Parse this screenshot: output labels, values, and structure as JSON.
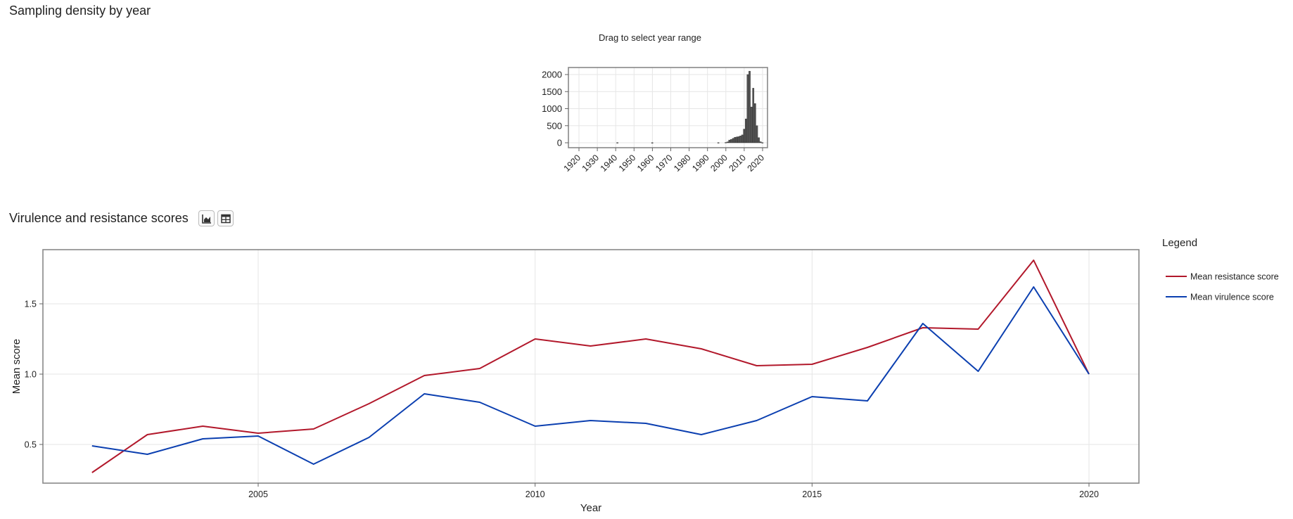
{
  "sections": {
    "density_title": "Sampling density by year",
    "scores_title": "Virulence and resistance scores"
  },
  "toolbar": {
    "chart_icon": "area-chart-icon",
    "table_icon": "table-icon"
  },
  "chart_data": [
    {
      "type": "bar",
      "title": "Drag to select year range",
      "xlabel": "",
      "ylabel": "",
      "xlim": [
        1915,
        2023
      ],
      "ylim": [
        0,
        2200
      ],
      "x_ticks": [
        "1920",
        "1930",
        "1940",
        "1950",
        "1960",
        "1970",
        "1980",
        "1990",
        "2000",
        "2010",
        "2020"
      ],
      "y_ticks": [
        "0",
        "500",
        "1000",
        "1500",
        "2000"
      ],
      "grid": true,
      "bar_color": "#555555",
      "x": [
        1941,
        1960,
        1996,
        2000,
        2001,
        2002,
        2003,
        2004,
        2005,
        2006,
        2007,
        2008,
        2009,
        2010,
        2011,
        2012,
        2013,
        2014,
        2015,
        2016,
        2017,
        2018,
        2019,
        2020
      ],
      "values": [
        5,
        3,
        5,
        10,
        25,
        80,
        100,
        130,
        160,
        170,
        180,
        200,
        230,
        400,
        700,
        2000,
        2100,
        1050,
        1600,
        1150,
        500,
        150,
        30,
        5
      ]
    },
    {
      "type": "line",
      "title": "",
      "xlabel": "Year",
      "ylabel": "Mean score",
      "xlim": [
        2001.1,
        2020.9
      ],
      "ylim": [
        0.22,
        1.88
      ],
      "x_ticks": [
        "2005",
        "2010",
        "2015",
        "2020"
      ],
      "y_ticks": [
        "0.5",
        "1.0",
        "1.5"
      ],
      "grid": true,
      "legend": {
        "title": "Legend",
        "position": "right"
      },
      "x": [
        2002,
        2003,
        2004,
        2005,
        2006,
        2007,
        2008,
        2009,
        2010,
        2011,
        2012,
        2013,
        2014,
        2015,
        2016,
        2017,
        2018,
        2019,
        2020
      ],
      "series": [
        {
          "name": "Mean resistance score",
          "color": "#b2182b",
          "values": [
            0.3,
            0.57,
            0.63,
            0.58,
            0.61,
            0.79,
            0.99,
            1.04,
            1.25,
            1.2,
            1.25,
            1.18,
            1.06,
            1.07,
            1.19,
            1.33,
            1.32,
            1.81,
            1.0
          ]
        },
        {
          "name": "Mean virulence score",
          "color": "#0b3fb0",
          "values": [
            0.49,
            0.43,
            0.54,
            0.56,
            0.36,
            0.55,
            0.86,
            0.8,
            0.63,
            0.67,
            0.65,
            0.57,
            0.67,
            0.84,
            0.81,
            1.36,
            1.02,
            1.62,
            1.0
          ]
        }
      ]
    }
  ]
}
